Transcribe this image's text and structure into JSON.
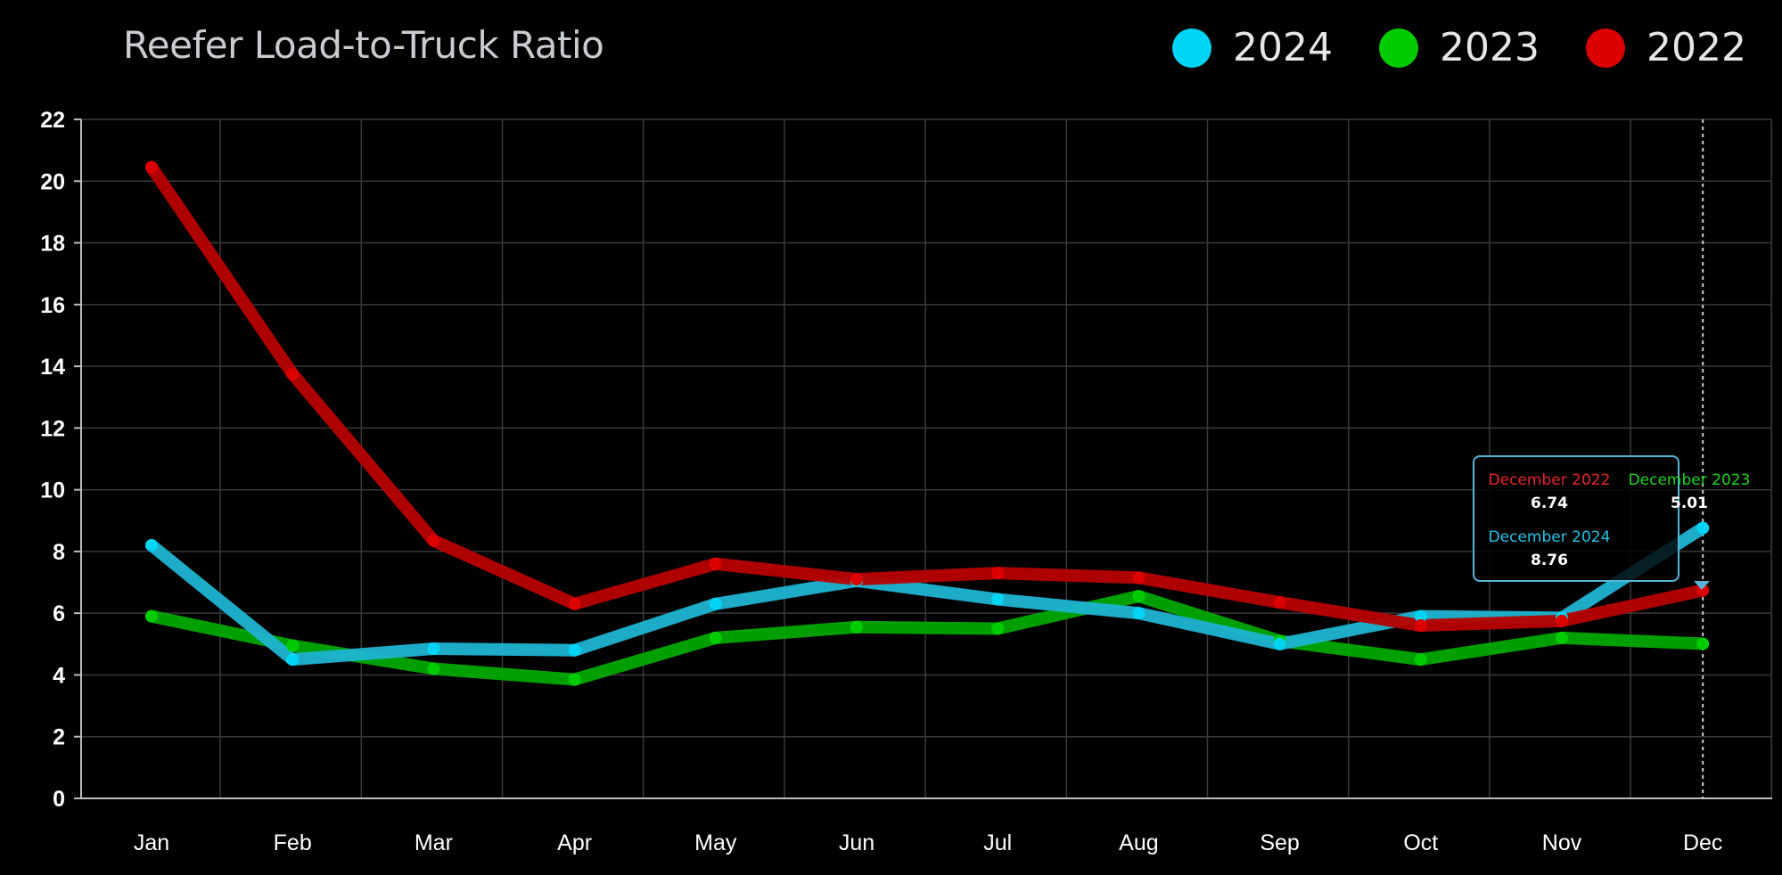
{
  "header": {
    "title": "Reefer Load-to-Truck Ratio",
    "legend": [
      {
        "label": "2024",
        "color": "#00d4f5"
      },
      {
        "label": "2023",
        "color": "#00cc00"
      },
      {
        "label": "2022",
        "color": "#dd0000"
      }
    ]
  },
  "chart_data": {
    "type": "line",
    "title": "Reefer Load-to-Truck Ratio",
    "xlabel": "",
    "ylabel": "",
    "categories": [
      "Jan",
      "Feb",
      "Mar",
      "Apr",
      "May",
      "Jun",
      "Jul",
      "Aug",
      "Sep",
      "Oct",
      "Nov",
      "Dec"
    ],
    "ylim": [
      0,
      22
    ],
    "yticks": [
      0,
      2,
      4,
      6,
      8,
      10,
      12,
      14,
      16,
      18,
      20,
      22
    ],
    "grid": true,
    "legend_position": "top-right",
    "series": [
      {
        "name": "2022",
        "color": "#dd0000",
        "line_color": "#b80000",
        "values": [
          20.45,
          13.75,
          8.35,
          6.3,
          7.6,
          7.1,
          7.3,
          7.15,
          6.35,
          5.6,
          5.75,
          6.74
        ]
      },
      {
        "name": "2023",
        "color": "#00cc00",
        "line_color": "#00a800",
        "values": [
          5.9,
          4.95,
          4.2,
          3.85,
          5.2,
          5.55,
          5.5,
          6.55,
          5.1,
          4.5,
          5.2,
          5.01
        ]
      },
      {
        "name": "2024",
        "color": "#00d4f5",
        "line_color": "#1fb4d2",
        "values": [
          8.2,
          4.5,
          4.85,
          4.8,
          6.3,
          7.05,
          6.45,
          6.0,
          5.0,
          5.9,
          5.85,
          8.76
        ]
      }
    ]
  },
  "tooltip": {
    "entries": [
      {
        "label": "December 2022",
        "value": "6.74",
        "color": "#e8262a"
      },
      {
        "label": "December 2023",
        "value": "5.01",
        "color": "#1fd41f"
      },
      {
        "label": "December 2024",
        "value": "8.76",
        "color": "#22c3e8"
      }
    ]
  }
}
